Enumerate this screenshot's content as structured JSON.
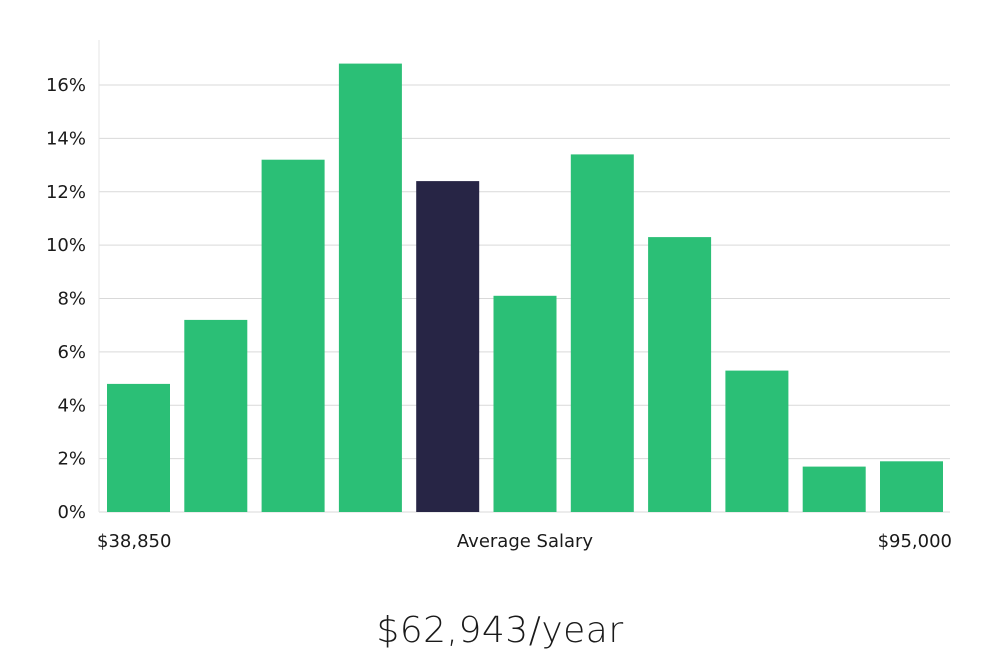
{
  "chart_data": {
    "type": "bar",
    "values": [
      4.8,
      7.2,
      13.2,
      16.8,
      12.4,
      8.1,
      13.4,
      10.3,
      5.3,
      1.7,
      1.9
    ],
    "highlight_index": 4,
    "ylim": [
      0,
      17.5
    ],
    "yticks": [
      "0%",
      "2%",
      "4%",
      "6%",
      "8%",
      "10%",
      "12%",
      "14%",
      "16%"
    ],
    "ytick_values": [
      0,
      2,
      4,
      6,
      8,
      10,
      12,
      14,
      16
    ],
    "x_left_label": "$38,850",
    "x_center_label": "Average Salary",
    "x_right_label": "$95,000",
    "bar_color": "#2bbf76",
    "highlight_color": "#272545",
    "grid": true
  },
  "salary_text": "$62,943/year"
}
